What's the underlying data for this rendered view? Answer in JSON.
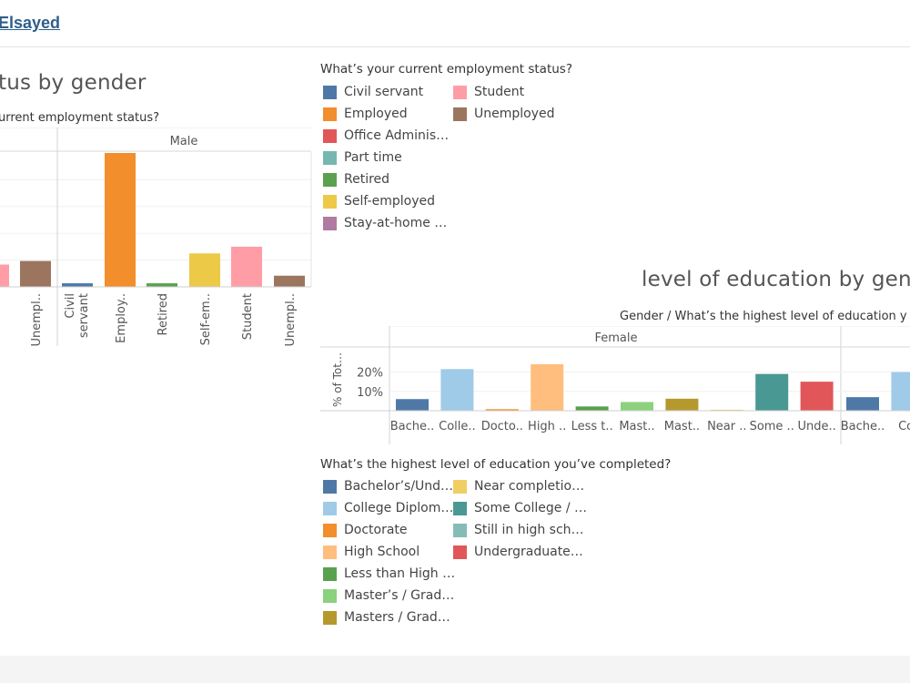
{
  "header": {
    "author_link": "Elsayed"
  },
  "employment_sheet": {
    "title": "tus by gender",
    "column_header": "urrent employment status?",
    "facets": [
      {
        "name": "",
        "partial": true
      },
      {
        "name": "Male"
      }
    ]
  },
  "employment_legend": {
    "title": "What’s your current employment status?",
    "items": [
      {
        "label": "Civil servant",
        "color": "#4e79a7"
      },
      {
        "label": "Employed",
        "color": "#f28e2b"
      },
      {
        "label": "Office Adminis…",
        "color": "#e15759"
      },
      {
        "label": "Part time",
        "color": "#76b7b2"
      },
      {
        "label": "Retired",
        "color": "#59a14f"
      },
      {
        "label": "Self-employed",
        "color": "#edc948"
      },
      {
        "label": "Stay-at-home …",
        "color": "#b07aa1"
      },
      {
        "label": "Student",
        "color": "#ff9da7"
      },
      {
        "label": "Unemployed",
        "color": "#9c755f"
      }
    ]
  },
  "education_sheet": {
    "title": "level of education by gende",
    "column_header": "Gender / What’s the highest level of education y",
    "facets": [
      {
        "name": "Female"
      }
    ],
    "y_axis_label": "% of Tot…"
  },
  "education_legend": {
    "title": "What’s the highest level of education you’ve completed?",
    "items": [
      {
        "label": "Bachelor’s/Und…",
        "color": "#4e79a7"
      },
      {
        "label": "College Diplom…",
        "color": "#a0cbe8"
      },
      {
        "label": "Doctorate",
        "color": "#f28e2b"
      },
      {
        "label": "High School",
        "color": "#ffbe7d"
      },
      {
        "label": "Less than High …",
        "color": "#59a14f"
      },
      {
        "label": "Master’s / Grad…",
        "color": "#8cd17d"
      },
      {
        "label": "Masters / Grad…",
        "color": "#b6992d"
      },
      {
        "label": "Near completio…",
        "color": "#f1ce63"
      },
      {
        "label": "Some College / …",
        "color": "#499894"
      },
      {
        "label": "Still in high sch…",
        "color": "#86bcb6"
      },
      {
        "label": "Undergraduate…",
        "color": "#e15759"
      }
    ]
  },
  "chart_data": [
    {
      "type": "bar",
      "title": "tus by gender",
      "ylim": [
        0,
        30
      ],
      "grid": true,
      "facets": [
        {
          "name": "",
          "categories": [
            "Unempl.."
          ],
          "values": [
            5.8
          ],
          "colors": [
            "#9c755f"
          ],
          "partial_bar": {
            "value": 5.0,
            "color": "#ff9da7"
          }
        },
        {
          "name": "Male",
          "categories": [
            "Civil servant",
            "Employ..",
            "Retired",
            "Self-em..",
            "Student",
            "Unempl.."
          ],
          "values": [
            0.8,
            30.0,
            0.8,
            7.5,
            9.0,
            2.5
          ],
          "colors": [
            "#4e79a7",
            "#f28e2b",
            "#59a14f",
            "#edc948",
            "#ff9da7",
            "#9c755f"
          ]
        }
      ]
    },
    {
      "type": "bar",
      "title": "level of education by gende",
      "ylabel": "% of Tot…",
      "ylim": [
        0,
        24
      ],
      "yticks": [
        "10%",
        "20%"
      ],
      "ytick_values": [
        10,
        20
      ],
      "grid": true,
      "facets": [
        {
          "name": "Female",
          "categories": [
            "Bache..",
            "Colle..",
            "Docto..",
            "High ..",
            "Less t..",
            "Mast..",
            "Mast..",
            "Near ..",
            "Some ..",
            "Unde.."
          ],
          "values": [
            6,
            21.5,
            0.8,
            24,
            2.2,
            4.5,
            6.2,
            0.5,
            19,
            15
          ],
          "colors": [
            "#4e79a7",
            "#a0cbe8",
            "#f28e2b",
            "#ffbe7d",
            "#59a14f",
            "#8cd17d",
            "#b6992d",
            "#f1ce63",
            "#499894",
            "#e15759"
          ]
        },
        {
          "name": "",
          "categories": [
            "Bache..",
            "Col"
          ],
          "values": [
            7,
            20
          ],
          "colors": [
            "#4e79a7",
            "#a0cbe8"
          ]
        }
      ]
    }
  ]
}
